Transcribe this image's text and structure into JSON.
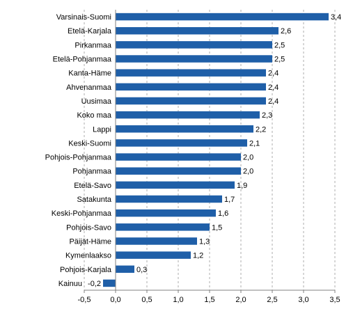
{
  "chart_data": {
    "type": "bar",
    "orientation": "horizontal",
    "title": "",
    "xlabel": "",
    "ylabel": "",
    "categories": [
      "Varsinais-Suomi",
      "Etelä-Karjala",
      "Pirkanmaa",
      "Etelä-Pohjanmaa",
      "Kanta-Häme",
      "Ahvenanmaa",
      "Uusimaa",
      "Koko maa",
      "Lappi",
      "Keski-Suomi",
      "Pohjois-Pohjanmaa",
      "Pohjanmaa",
      "Etelä-Savo",
      "Satakunta",
      "Keski-Pohjanmaa",
      "Pohjois-Savo",
      "Päijät-Häme",
      "Kymenlaakso",
      "Pohjois-Karjala",
      "Kainuu"
    ],
    "values": [
      3.4,
      2.6,
      2.5,
      2.5,
      2.4,
      2.4,
      2.4,
      2.3,
      2.2,
      2.1,
      2.0,
      2.0,
      1.9,
      1.7,
      1.6,
      1.5,
      1.3,
      1.2,
      0.3,
      -0.2
    ],
    "value_labels": [
      "3,4",
      "2,6",
      "2,5",
      "2,5",
      "2,4",
      "2,4",
      "2,4",
      "2,3",
      "2,2",
      "2,1",
      "2,0",
      "2,0",
      "1,9",
      "1,7",
      "1,6",
      "1,5",
      "1,3",
      "1,2",
      "0,3",
      "-0,2"
    ],
    "xlim": [
      -0.5,
      3.5
    ],
    "xticks": [
      -0.5,
      0.0,
      0.5,
      1.0,
      1.5,
      2.0,
      2.5,
      3.0,
      3.5
    ],
    "xtick_labels": [
      "-0,5",
      "0,0",
      "0,5",
      "1,0",
      "1,5",
      "2,0",
      "2,5",
      "3,0",
      "3,5"
    ],
    "grid": "vertical dashed",
    "legend": "none",
    "bar_color": "#1f5fa8"
  }
}
